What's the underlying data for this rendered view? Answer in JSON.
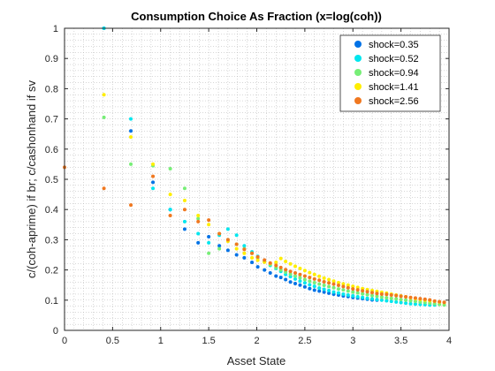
{
  "chart_data": {
    "type": "scatter",
    "title": "Consumption Choice As Fraction (x=log(coh))",
    "xlabel": "Asset State",
    "ylabel": "c/(coh-aprime) if br; c/cashonhand if sv",
    "xlim": [
      0,
      4
    ],
    "ylim": [
      0,
      1
    ],
    "xticks": [
      "0",
      "0.5",
      "1",
      "1.5",
      "2",
      "2.5",
      "3",
      "3.5",
      "4"
    ],
    "yticks": [
      "0",
      "0.1",
      "0.2",
      "0.3",
      "0.4",
      "0.5",
      "0.6",
      "0.7",
      "0.8",
      "0.9",
      "1"
    ],
    "grid": "minor dotted",
    "legend_position": "top-right",
    "series": [
      {
        "name": "shock=0.35",
        "color": "#0072e6",
        "points": [
          [
            0.41,
            1.0
          ],
          [
            0.69,
            0.66
          ],
          [
            0.92,
            0.49
          ],
          [
            1.1,
            0.4
          ],
          [
            1.25,
            0.335
          ],
          [
            1.39,
            0.29
          ],
          [
            1.5,
            0.31
          ],
          [
            1.61,
            0.28
          ],
          [
            1.7,
            0.265
          ],
          [
            1.79,
            0.25
          ],
          [
            1.87,
            0.24
          ],
          [
            1.95,
            0.225
          ],
          [
            2.01,
            0.21
          ],
          [
            2.08,
            0.2
          ],
          [
            2.14,
            0.19
          ],
          [
            2.2,
            0.18
          ],
          [
            2.25,
            0.175
          ],
          [
            2.3,
            0.168
          ],
          [
            2.35,
            0.16
          ],
          [
            2.4,
            0.155
          ],
          [
            2.45,
            0.15
          ],
          [
            2.5,
            0.144
          ],
          [
            2.55,
            0.138
          ],
          [
            2.6,
            0.133
          ],
          [
            2.65,
            0.13
          ],
          [
            2.7,
            0.127
          ],
          [
            2.75,
            0.123
          ],
          [
            2.8,
            0.12
          ],
          [
            2.85,
            0.117
          ],
          [
            2.9,
            0.114
          ],
          [
            2.95,
            0.112
          ],
          [
            3.0,
            0.109
          ],
          [
            3.05,
            0.107
          ],
          [
            3.1,
            0.105
          ],
          [
            3.15,
            0.103
          ],
          [
            3.2,
            0.101
          ],
          [
            3.25,
            0.1
          ]
        ]
      },
      {
        "name": "shock=0.52",
        "color": "#00e6ee",
        "points": [
          [
            0.41,
            1.0
          ],
          [
            0.69,
            0.7
          ],
          [
            0.92,
            0.47
          ],
          [
            1.1,
            0.4
          ],
          [
            1.25,
            0.36
          ],
          [
            1.39,
            0.32
          ],
          [
            1.5,
            0.29
          ],
          [
            1.61,
            0.315
          ],
          [
            1.7,
            0.335
          ],
          [
            1.79,
            0.315
          ],
          [
            1.87,
            0.28
          ],
          [
            1.95,
            0.26
          ],
          [
            2.01,
            0.245
          ],
          [
            2.08,
            0.23
          ],
          [
            2.14,
            0.215
          ],
          [
            2.2,
            0.205
          ],
          [
            2.25,
            0.195
          ],
          [
            2.3,
            0.185
          ],
          [
            2.35,
            0.178
          ],
          [
            2.4,
            0.17
          ],
          [
            2.45,
            0.163
          ],
          [
            2.5,
            0.157
          ],
          [
            2.55,
            0.151
          ],
          [
            2.6,
            0.146
          ],
          [
            2.65,
            0.14
          ],
          [
            2.7,
            0.136
          ],
          [
            2.75,
            0.132
          ],
          [
            2.8,
            0.127
          ],
          [
            2.85,
            0.124
          ],
          [
            2.9,
            0.12
          ],
          [
            2.95,
            0.117
          ],
          [
            3.0,
            0.114
          ],
          [
            3.05,
            0.111
          ],
          [
            3.1,
            0.109
          ],
          [
            3.15,
            0.106
          ],
          [
            3.2,
            0.104
          ],
          [
            3.25,
            0.102
          ],
          [
            3.3,
            0.1
          ],
          [
            3.35,
            0.098
          ],
          [
            3.4,
            0.096
          ],
          [
            3.45,
            0.094
          ],
          [
            3.5,
            0.092
          ],
          [
            3.55,
            0.09
          ],
          [
            3.6,
            0.088
          ],
          [
            3.65,
            0.087
          ],
          [
            3.7,
            0.086
          ],
          [
            3.75,
            0.085
          ],
          [
            3.8,
            0.084
          ],
          [
            3.85,
            0.084
          ]
        ]
      },
      {
        "name": "shock=0.94",
        "color": "#77ee77",
        "points": [
          [
            0.41,
            0.705
          ],
          [
            0.69,
            0.55
          ],
          [
            0.92,
            0.545
          ],
          [
            1.1,
            0.535
          ],
          [
            1.25,
            0.47
          ],
          [
            1.39,
            0.37
          ],
          [
            1.5,
            0.255
          ],
          [
            1.61,
            0.27
          ],
          [
            1.7,
            0.3
          ],
          [
            1.79,
            0.285
          ],
          [
            1.87,
            0.27
          ],
          [
            1.95,
            0.255
          ],
          [
            2.01,
            0.24
          ],
          [
            2.08,
            0.228
          ],
          [
            2.14,
            0.218
          ],
          [
            2.2,
            0.208
          ],
          [
            2.25,
            0.2
          ],
          [
            2.3,
            0.193
          ],
          [
            2.35,
            0.186
          ],
          [
            2.4,
            0.18
          ],
          [
            2.45,
            0.174
          ],
          [
            2.5,
            0.168
          ],
          [
            2.55,
            0.163
          ],
          [
            2.6,
            0.158
          ],
          [
            2.65,
            0.153
          ],
          [
            2.7,
            0.149
          ],
          [
            2.75,
            0.145
          ],
          [
            2.8,
            0.141
          ],
          [
            2.85,
            0.137
          ],
          [
            2.9,
            0.134
          ],
          [
            2.95,
            0.13
          ],
          [
            3.0,
            0.127
          ],
          [
            3.05,
            0.124
          ],
          [
            3.1,
            0.121
          ],
          [
            3.15,
            0.118
          ],
          [
            3.2,
            0.115
          ],
          [
            3.25,
            0.113
          ],
          [
            3.3,
            0.11
          ],
          [
            3.35,
            0.108
          ],
          [
            3.4,
            0.106
          ],
          [
            3.45,
            0.104
          ],
          [
            3.5,
            0.102
          ],
          [
            3.55,
            0.1
          ],
          [
            3.6,
            0.098
          ],
          [
            3.65,
            0.096
          ],
          [
            3.7,
            0.094
          ],
          [
            3.75,
            0.092
          ],
          [
            3.8,
            0.09
          ],
          [
            3.85,
            0.088
          ],
          [
            3.9,
            0.086
          ],
          [
            3.95,
            0.084
          ]
        ]
      },
      {
        "name": "shock=1.41",
        "color": "#ffee00",
        "points": [
          [
            0.41,
            0.78
          ],
          [
            0.69,
            0.64
          ],
          [
            0.92,
            0.55
          ],
          [
            1.1,
            0.45
          ],
          [
            1.25,
            0.43
          ],
          [
            1.39,
            0.38
          ],
          [
            1.5,
            0.35
          ],
          [
            1.61,
            0.32
          ],
          [
            1.7,
            0.295
          ],
          [
            1.79,
            0.27
          ],
          [
            1.87,
            0.255
          ],
          [
            1.95,
            0.24
          ],
          [
            2.01,
            0.232
          ],
          [
            2.08,
            0.226
          ],
          [
            2.14,
            0.222
          ],
          [
            2.2,
            0.225
          ],
          [
            2.25,
            0.238
          ],
          [
            2.3,
            0.228
          ],
          [
            2.35,
            0.22
          ],
          [
            2.4,
            0.212
          ],
          [
            2.45,
            0.205
          ],
          [
            2.5,
            0.198
          ],
          [
            2.55,
            0.191
          ],
          [
            2.6,
            0.185
          ],
          [
            2.65,
            0.179
          ],
          [
            2.7,
            0.173
          ],
          [
            2.75,
            0.168
          ],
          [
            2.8,
            0.163
          ],
          [
            2.85,
            0.158
          ],
          [
            2.9,
            0.154
          ],
          [
            2.95,
            0.15
          ],
          [
            3.0,
            0.146
          ],
          [
            3.05,
            0.142
          ],
          [
            3.1,
            0.138
          ],
          [
            3.15,
            0.135
          ],
          [
            3.2,
            0.132
          ],
          [
            3.25,
            0.129
          ],
          [
            3.3,
            0.126
          ],
          [
            3.35,
            0.123
          ],
          [
            3.4,
            0.12
          ],
          [
            3.45,
            0.117
          ],
          [
            3.5,
            0.114
          ],
          [
            3.55,
            0.111
          ],
          [
            3.6,
            0.108
          ],
          [
            3.65,
            0.105
          ],
          [
            3.7,
            0.102
          ],
          [
            3.75,
            0.1
          ],
          [
            3.8,
            0.098
          ],
          [
            3.85,
            0.096
          ],
          [
            3.9,
            0.094
          ],
          [
            3.95,
            0.092
          ]
        ]
      },
      {
        "name": "shock=2.56",
        "color": "#f07820",
        "points": [
          [
            0.0,
            0.54
          ],
          [
            0.41,
            0.47
          ],
          [
            0.69,
            0.415
          ],
          [
            0.92,
            0.51
          ],
          [
            1.1,
            0.38
          ],
          [
            1.25,
            0.4
          ],
          [
            1.39,
            0.36
          ],
          [
            1.5,
            0.365
          ],
          [
            1.61,
            0.32
          ],
          [
            1.7,
            0.3
          ],
          [
            1.79,
            0.285
          ],
          [
            1.87,
            0.268
          ],
          [
            1.95,
            0.255
          ],
          [
            2.01,
            0.243
          ],
          [
            2.08,
            0.233
          ],
          [
            2.14,
            0.223
          ],
          [
            2.2,
            0.215
          ],
          [
            2.25,
            0.208
          ],
          [
            2.3,
            0.201
          ],
          [
            2.35,
            0.195
          ],
          [
            2.4,
            0.19
          ],
          [
            2.45,
            0.185
          ],
          [
            2.5,
            0.18
          ],
          [
            2.55,
            0.175
          ],
          [
            2.6,
            0.17
          ],
          [
            2.65,
            0.166
          ],
          [
            2.7,
            0.161
          ],
          [
            2.75,
            0.157
          ],
          [
            2.8,
            0.153
          ],
          [
            2.85,
            0.149
          ],
          [
            2.9,
            0.145
          ],
          [
            2.95,
            0.141
          ],
          [
            3.0,
            0.137
          ],
          [
            3.05,
            0.134
          ],
          [
            3.1,
            0.131
          ],
          [
            3.15,
            0.128
          ],
          [
            3.2,
            0.125
          ],
          [
            3.25,
            0.122
          ],
          [
            3.3,
            0.12
          ],
          [
            3.35,
            0.119
          ],
          [
            3.4,
            0.117
          ],
          [
            3.45,
            0.115
          ],
          [
            3.5,
            0.113
          ],
          [
            3.55,
            0.111
          ],
          [
            3.6,
            0.109
          ],
          [
            3.65,
            0.107
          ],
          [
            3.7,
            0.105
          ],
          [
            3.75,
            0.103
          ],
          [
            3.8,
            0.101
          ],
          [
            3.85,
            0.097
          ],
          [
            3.9,
            0.095
          ],
          [
            3.95,
            0.093
          ]
        ]
      }
    ]
  }
}
